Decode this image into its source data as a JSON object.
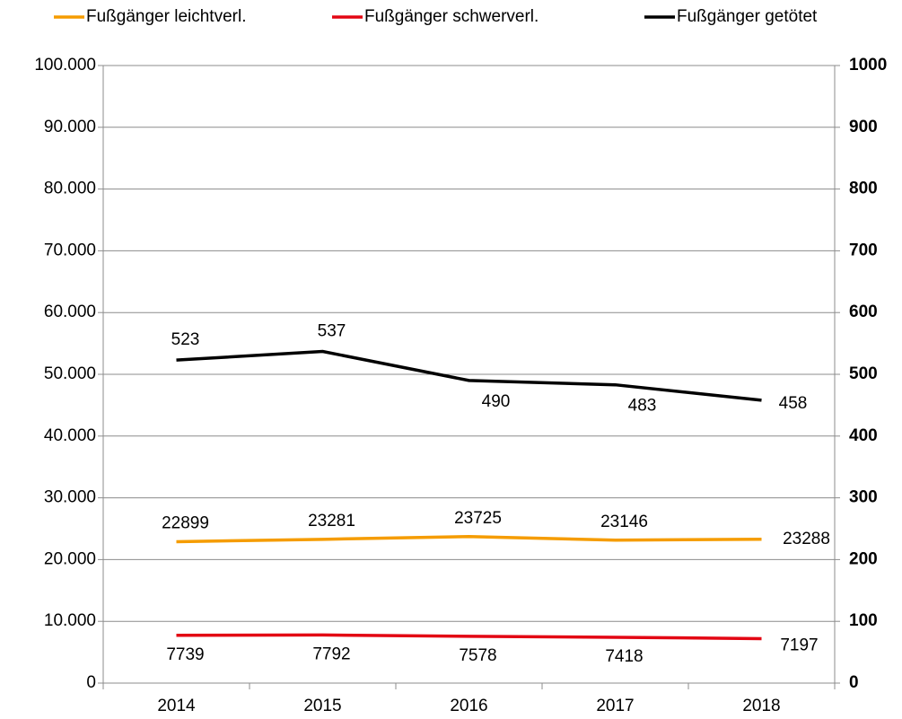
{
  "chart_data": {
    "type": "line",
    "categories": [
      "2014",
      "2015",
      "2016",
      "2017",
      "2018"
    ],
    "series": [
      {
        "name": "Fußgänger leichtverl.",
        "color": "#f59c00",
        "values": [
          22899,
          23281,
          23725,
          23146,
          23288
        ]
      },
      {
        "name": "Fußgänger schwerverl.",
        "color": "#e30613",
        "values": [
          7739,
          7792,
          7578,
          7418,
          7197
        ]
      },
      {
        "name": "Fußgänger getötet",
        "color": "#000000",
        "axis": "y2",
        "values": [
          523,
          537,
          490,
          483,
          458
        ]
      }
    ],
    "ylim": [
      0,
      100000
    ],
    "yticks": [
      0,
      {
        "value": 10000,
        "label": "10.000"
      },
      {
        "value": 20000,
        "label": "20.000"
      },
      {
        "value": 30000,
        "label": "30.000"
      },
      {
        "value": 40000,
        "label": "40.000"
      },
      {
        "value": 50000,
        "label": "50.000"
      },
      {
        "value": 60000,
        "label": "60.000"
      },
      {
        "value": 70000,
        "label": "70.000"
      },
      {
        "value": 80000,
        "label": "80.000"
      },
      {
        "value": 90000,
        "label": "90.000"
      },
      {
        "value": 100000,
        "label": "100.000"
      }
    ],
    "y2lim": [
      0,
      1000
    ],
    "y2ticks": [
      0,
      100,
      200,
      300,
      400,
      500,
      600,
      700,
      800,
      900,
      1000
    ],
    "grid": true,
    "legend": "top"
  }
}
